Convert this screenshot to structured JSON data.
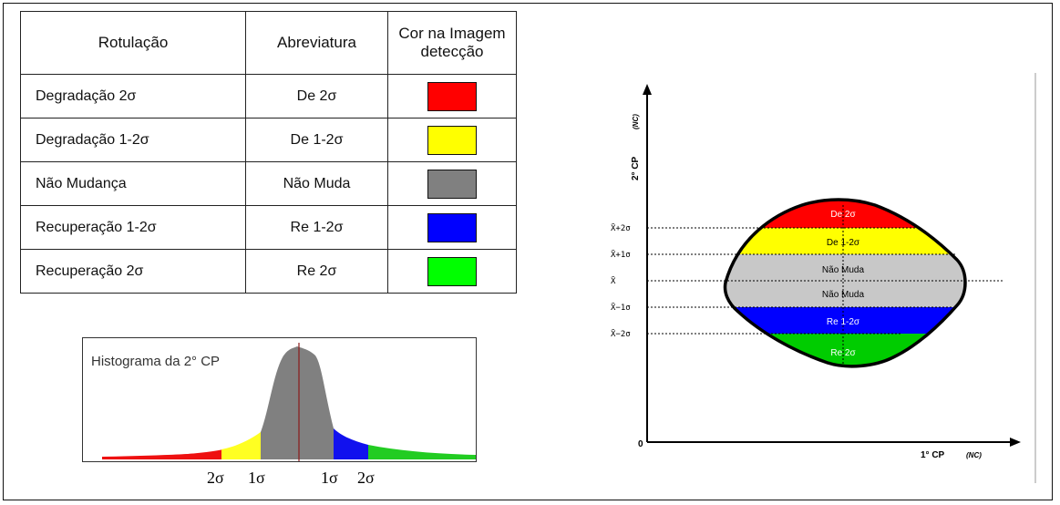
{
  "table": {
    "headers": {
      "label": "Rotulação",
      "abbrev": "Abreviatura",
      "color_line1": "Cor na  Imagem",
      "color_line2": "detecção"
    },
    "rows": [
      {
        "label": "Degradação 2σ",
        "abbrev": "De 2σ",
        "color": "#ff0000"
      },
      {
        "label": "Degradação 1-2σ",
        "abbrev": "De 1-2σ",
        "color": "#ffff00"
      },
      {
        "label": "Não Mudança",
        "abbrev": "Não Muda",
        "color": "#808080"
      },
      {
        "label": "Recuperação 1-2σ",
        "abbrev": "Re 1-2σ",
        "color": "#0000ff"
      },
      {
        "label": "Recuperação 2σ",
        "abbrev": "Re 2σ",
        "color": "#00ff00"
      }
    ]
  },
  "histogram": {
    "title": "Histograma da 2° CP",
    "tick_labels": [
      "2σ",
      "1σ",
      "1σ",
      "2σ"
    ],
    "colors": {
      "red": "#ee1111",
      "yellow": "#ffff22",
      "gray": "#808080",
      "blue": "#1111ee",
      "green": "#22cc22",
      "mean_line": "#8b1a1a"
    }
  },
  "scatter": {
    "y_axis_label": "2° CP",
    "y_axis_unit": "(NC)",
    "x_axis_label": "1° CP",
    "x_axis_unit": "(NC)",
    "origin_label": "0",
    "level_labels": [
      "X̄+2σ",
      "X̄+1σ",
      "X̄",
      "X̄−1σ",
      "X̄−2σ"
    ],
    "band_labels": [
      "De 2σ",
      "De 1-2σ",
      "Não Muda",
      "Não Muda",
      "Re 1-2σ",
      "Re 2σ"
    ],
    "colors": {
      "red": "#ff0000",
      "yellow": "#ffff00",
      "gray": "#c8c8c8",
      "blue": "#0000ff",
      "green": "#00cc00"
    }
  }
}
